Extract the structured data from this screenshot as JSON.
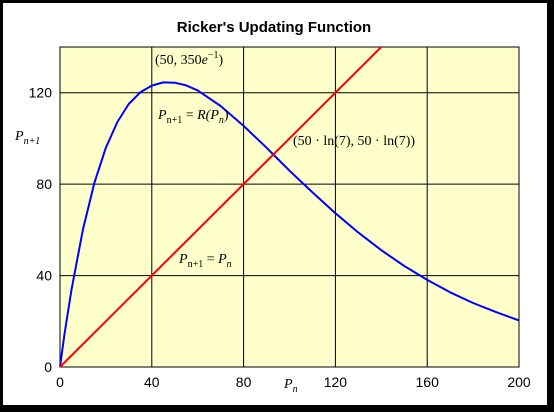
{
  "chart_data": {
    "type": "line",
    "title": "Ricker's Updating Function",
    "xlim": [
      0,
      200
    ],
    "ylim": [
      0,
      140
    ],
    "x_ticks": [
      "0",
      "40",
      "80",
      "120",
      "160",
      "200"
    ],
    "y_ticks": [
      "0",
      "40",
      "80",
      "120"
    ],
    "grid": true,
    "xlabel": {
      "main": "P",
      "sub": "n"
    },
    "ylabel": {
      "main": "P",
      "sub": "n+1"
    },
    "colors": {
      "plot_bg": "#ffffcc",
      "ricker": "#0000ff",
      "identity": "#ff0000",
      "grid": "#000000"
    },
    "series": [
      {
        "x": [
          0,
          2,
          5,
          10,
          15,
          20,
          25,
          30,
          35,
          40,
          45,
          50,
          55,
          60,
          70,
          80,
          90,
          97.3,
          100,
          110,
          120,
          130,
          140,
          150,
          160,
          170,
          180,
          190,
          200
        ],
        "values": [
          0,
          14.7,
          33.8,
          60.3,
          80.6,
          96.0,
          107.2,
          115.1,
          120.2,
          123.1,
          124.5,
          124.4,
          123.2,
          121.0,
          114.2,
          105.5,
          95.9,
          88.6,
          85.9,
          76.4,
          67.3,
          58.8,
          51.1,
          44.2,
          38.1,
          32.7,
          28.0,
          24.0,
          20.4
        ]
      },
      {
        "x": [
          0,
          140
        ],
        "values": [
          0,
          140
        ]
      }
    ],
    "annotations": {
      "max_point": {
        "pre": "(50, 350",
        "base": "e",
        "exp": "−1",
        "post": ")"
      },
      "ricker_label": {
        "lhs": "P",
        "lhs_sub": "n+1",
        "eq": " = ",
        "fn": "R(",
        "arg": "P",
        "arg_sub": "n",
        "close": ")"
      },
      "fixed_point": {
        "text1": "(50 · ln(7), 50 · ln(7))"
      },
      "identity_label": {
        "lhs": "P",
        "lhs_sub": "n+1",
        "eq": " = ",
        "rhs": "P",
        "rhs_sub": "n"
      }
    }
  }
}
